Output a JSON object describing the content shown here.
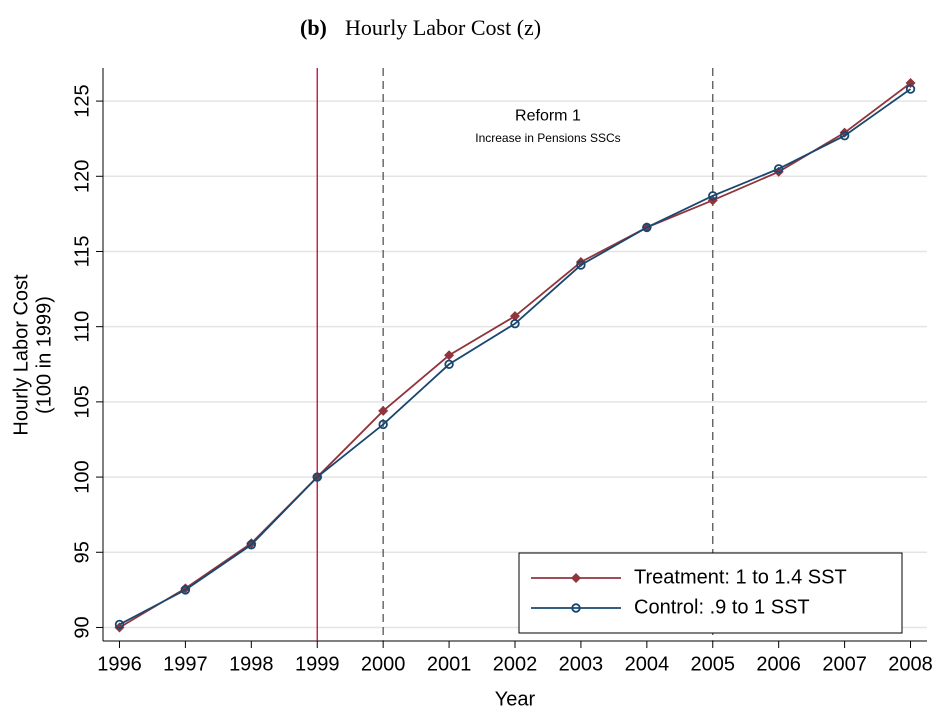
{
  "chart_data": {
    "type": "line",
    "title_prefix": "(b)",
    "title": "Hourly Labor Cost (z)",
    "y_label": [
      "Hourly Labor Cost",
      "(100 in 1999)"
    ],
    "x_label": "Year",
    "x": [
      1996,
      1997,
      1998,
      1999,
      2000,
      2001,
      2002,
      2003,
      2004,
      2005,
      2006,
      2007,
      2008
    ],
    "series": [
      {
        "name": "Treatment: 1 to 1.4 SST",
        "color": "#90353b",
        "marker": "diamond",
        "values": [
          90.0,
          92.6,
          95.6,
          100,
          104.4,
          108.1,
          110.7,
          114.3,
          116.6,
          118.4,
          120.3,
          122.9,
          126.2
        ]
      },
      {
        "name": "Control: .9 to 1 SST",
        "color": "#1a476f",
        "marker": "circle",
        "values": [
          90.2,
          92.5,
          95.5,
          100,
          103.5,
          107.5,
          110.2,
          114.1,
          116.6,
          118.7,
          120.5,
          122.7,
          125.8
        ]
      }
    ],
    "xlim": [
      1995.75,
      2008.25
    ],
    "xticks": [
      1996,
      1997,
      1998,
      1999,
      2000,
      2001,
      2002,
      2003,
      2004,
      2005,
      2006,
      2007,
      2008
    ],
    "ylim": [
      89.1,
      127.2
    ],
    "yticks": [
      90,
      95,
      100,
      105,
      110,
      115,
      120,
      125
    ],
    "grid": true,
    "legend": "lower right",
    "vlines": [
      {
        "x": 1999,
        "color": "#c10534",
        "style": "solid"
      },
      {
        "x": 2000,
        "color": "#555555",
        "style": "dashed"
      },
      {
        "x": 2005,
        "color": "#555555",
        "style": "dashed"
      }
    ],
    "annotations": [
      {
        "text": "Reform 1",
        "x": 2002.5,
        "y": 124.0
      },
      {
        "text": "Increase in Pensions SSCs",
        "x": 2002.5,
        "y": 122.5
      }
    ]
  }
}
